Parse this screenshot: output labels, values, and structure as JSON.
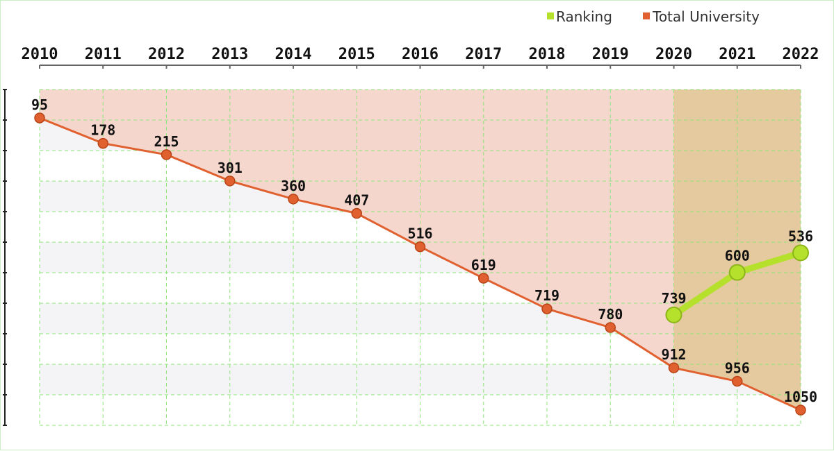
{
  "chart_data": {
    "type": "line",
    "x": [
      "2010",
      "2011",
      "2012",
      "2013",
      "2014",
      "2015",
      "2016",
      "2017",
      "2018",
      "2019",
      "2020",
      "2021",
      "2022"
    ],
    "x_axis_position": "top",
    "y_axis": {
      "inverted": true,
      "range": [
        0,
        1100
      ],
      "tick_labels_shown": false
    },
    "grid": true,
    "legend": {
      "placement": "top-right"
    },
    "series": [
      {
        "name": "Ranking",
        "color": "#b5e02c",
        "x": [
          "2020",
          "2021",
          "2022"
        ],
        "values": [
          739,
          600,
          536
        ],
        "labels": [
          "739",
          "600",
          "536"
        ],
        "area_fill": "#e3c89a"
      },
      {
        "name": "Total University",
        "color": "#e06030",
        "values": [
          95,
          178,
          215,
          301,
          360,
          407,
          516,
          619,
          719,
          780,
          912,
          956,
          1050
        ],
        "labels": [
          "95",
          "178",
          "215",
          "301",
          "360",
          "407",
          "516",
          "619",
          "719",
          "780",
          "912",
          "956",
          "1050"
        ],
        "area_fill": "#f5d0c4"
      }
    ]
  }
}
